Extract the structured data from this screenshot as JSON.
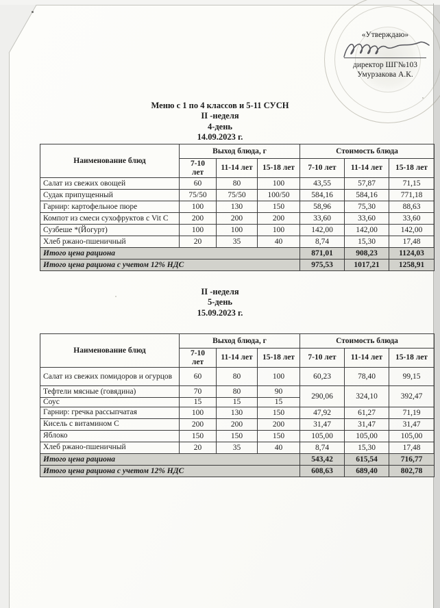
{
  "approval": {
    "label": "«Утверждаю»",
    "role": "директор ШГ№103",
    "name": "Умурзакова А.К."
  },
  "headers": {
    "name": "Наименование блюд",
    "output": "Выход блюда, г",
    "cost": "Стоимость блюда",
    "age_groups": [
      "7-10 лет",
      "11-14 лет",
      "15-18 лет"
    ]
  },
  "section1": {
    "title": "Меню с 1 по 4 классов и 5-11 СУСН",
    "week": "II -неделя",
    "day": "4-день",
    "date": "14.09.2023 г.",
    "rows": [
      {
        "name": "Салат из свежих овощей",
        "weights": [
          "60",
          "80",
          "100"
        ],
        "costs": [
          "43,55",
          "57,87",
          "71,15"
        ]
      },
      {
        "name": "Судак припущенный",
        "weights": [
          "75/50",
          "75/50",
          "100/50"
        ],
        "costs": [
          "584,16",
          "584,16",
          "771,18"
        ]
      },
      {
        "name": "Гарнир:  картофельное пюре",
        "weights": [
          "100",
          "130",
          "150"
        ],
        "costs": [
          "58,96",
          "75,30",
          "88,63"
        ]
      },
      {
        "name": "Компот из смеси сухофруктов с Vit C",
        "weights": [
          "200",
          "200",
          "200"
        ],
        "costs": [
          "33,60",
          "33,60",
          "33,60"
        ]
      },
      {
        "name": "Сузбеше *(Йогурт)",
        "weights": [
          "100",
          "100",
          "100"
        ],
        "costs": [
          "142,00",
          "142,00",
          "142,00"
        ]
      },
      {
        "name": "Хлеб ржано-пшеничный",
        "weights": [
          "20",
          "35",
          "40"
        ],
        "costs": [
          "8,74",
          "15,30",
          "17,48"
        ]
      }
    ],
    "totals": [
      {
        "label": "Итого цена рациона",
        "values": [
          "871,01",
          "908,23",
          "1124,03"
        ]
      },
      {
        "label": "Итого цена рациона с учетом 12% НДС",
        "values": [
          "975,53",
          "1017,21",
          "1258,91"
        ]
      }
    ]
  },
  "section2": {
    "week": "II -неделя",
    "day": "5-день",
    "date": "15.09.2023 г.",
    "rows": [
      {
        "name": "Салат из свежих помидоров и огурцов",
        "tall": true,
        "weights": [
          "60",
          "80",
          "100"
        ],
        "costs": [
          "60,23",
          "78,40",
          "99,15"
        ]
      },
      {
        "name": "Тефтели мясные (говядина)",
        "weights": [
          "70",
          "80",
          "90"
        ],
        "costs": [
          "290,06",
          "324,10",
          "392,47"
        ],
        "cost_rowspan": 2
      },
      {
        "name": "Соус",
        "short": true,
        "weights": [
          "15",
          "15",
          "15"
        ],
        "costs": null
      },
      {
        "name": "Гарнир: гречка рассыпчатая",
        "weights": [
          "100",
          "130",
          "150"
        ],
        "costs": [
          "47,92",
          "61,27",
          "71,19"
        ]
      },
      {
        "name": "Кисель с витамином С",
        "weights": [
          "200",
          "200",
          "200"
        ],
        "costs": [
          "31,47",
          "31,47",
          "31,47"
        ]
      },
      {
        "name": "Яблоко",
        "weights": [
          "150",
          "150",
          "150"
        ],
        "costs": [
          "105,00",
          "105,00",
          "105,00"
        ]
      },
      {
        "name": "Хлеб ржано-пшеничный",
        "weights": [
          "20",
          "35",
          "40"
        ],
        "costs": [
          "8,74",
          "15,30",
          "17,48"
        ]
      }
    ],
    "totals": [
      {
        "label": "Итого цена рациона",
        "values": [
          "543,42",
          "615,54",
          "716,77"
        ]
      },
      {
        "label": "Итого цена рациона с учетом 12% НДС",
        "values": [
          "608,63",
          "689,40",
          "802,78"
        ]
      }
    ]
  }
}
